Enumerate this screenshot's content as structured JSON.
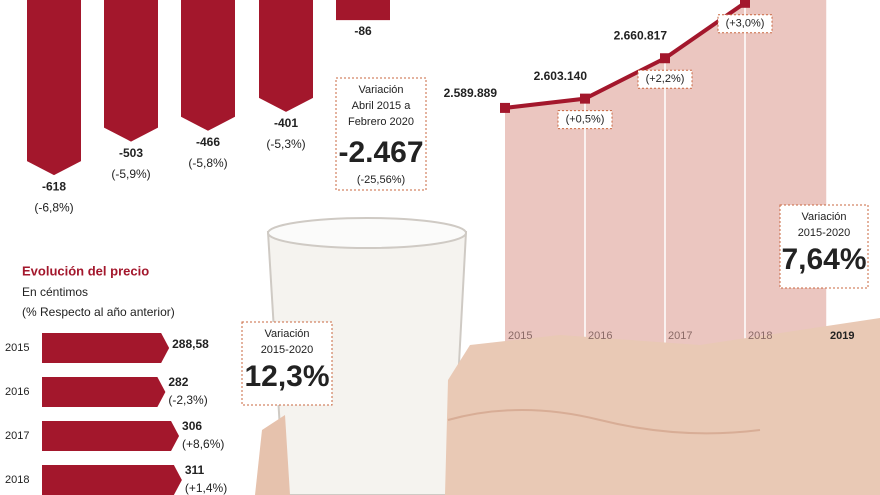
{
  "chart_data": [
    {
      "type": "bar",
      "values": [
        -618,
        -503,
        -466,
        -401,
        -86
      ],
      "changes": [
        "(-6,8%)",
        "(-5,9%)",
        "(-5,8%)",
        "(-5,3%)",
        null
      ],
      "color": "#a3172c",
      "ylim": [
        -700,
        0
      ],
      "note": {
        "lines": [
          "Variación",
          "Abril 2015 a",
          "Febrero 2020"
        ],
        "value": "-2.467",
        "change": "(-25,56%)"
      }
    },
    {
      "type": "line",
      "categories": [
        "2015",
        "2016",
        "2017",
        "2018",
        "2019"
      ],
      "values": [
        2589889,
        2603140,
        2660817,
        2740000,
        null
      ],
      "value_labels": [
        "2.589.889",
        "2.603.140",
        "2.660.817",
        null,
        null
      ],
      "changes": [
        null,
        "(+0,5%)",
        "(+2,2%)",
        "(+3,0%)",
        null
      ],
      "color": "#a3172c",
      "area_color": "#ebc6c0",
      "ylim": [
        2237000,
        2744000
      ],
      "note": {
        "lines": [
          "Variación",
          "2015-2020"
        ],
        "value": "7,64%"
      }
    },
    {
      "type": "hbar",
      "title": "Evolución del precio",
      "subtitle": "En céntimos",
      "subtitle2": "(% Respecto al año anterior)",
      "categories": [
        "2015",
        "2016",
        "2017",
        "2018"
      ],
      "values": [
        288.58,
        282,
        306,
        311
      ],
      "value_labels": [
        "288,58",
        "282",
        "306",
        "311"
      ],
      "changes": [
        null,
        "(-2,3%)",
        "(+8,6%)",
        "(+1,4%)"
      ],
      "color": "#a3172c",
      "xlim": [
        0,
        320
      ],
      "note": {
        "lines": [
          "Variación",
          "2015-2020"
        ],
        "value": "12,3%"
      }
    }
  ]
}
